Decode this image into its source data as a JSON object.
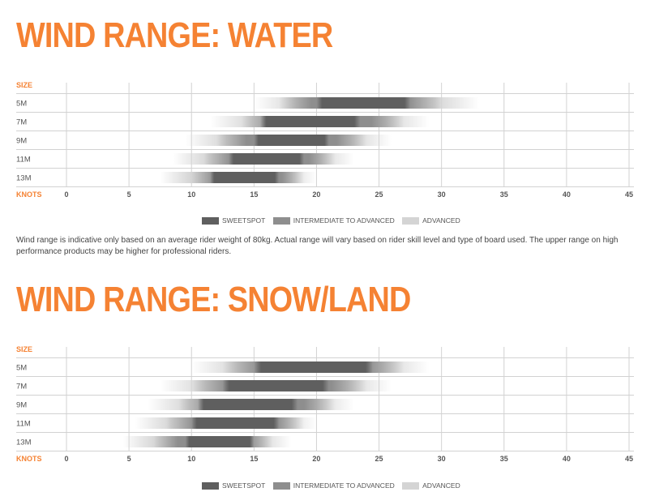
{
  "colors": {
    "accent": "#f58233",
    "sweetspot": "#5f5f5f",
    "intermediate": "#8e8e8e",
    "advanced": "#d4d4d4",
    "grid": "#d2d2d2",
    "label": "#555555"
  },
  "legend": {
    "sweetspot": "SWEETSPOT",
    "intermediate": "INTERMEDIATE TO ADVANCED",
    "advanced": "ADVANCED"
  },
  "note": "Wind range is indicative only based on an average rider weight of 80kg. Actual range will vary based on rider skill level and type of board used. The upper range on high performance products may be higher for professional riders.",
  "chart_data": [
    {
      "type": "bar",
      "title": "WIND RANGE: WATER",
      "ylabel": "SIZE",
      "xlabel": "KNOTS",
      "xlim": [
        0,
        45
      ],
      "xticks": [
        0,
        5,
        10,
        15,
        20,
        25,
        30,
        35,
        40,
        45
      ],
      "categories": [
        "5M",
        "7M",
        "9M",
        "11M",
        "13M"
      ],
      "series": [
        {
          "name": "ADVANCED",
          "ranges": [
            [
              15,
              33
            ],
            [
              11.5,
              29
            ],
            [
              9.5,
              26
            ],
            [
              8.5,
              23
            ],
            [
              7.5,
              20
            ]
          ]
        },
        {
          "name": "INTERMEDIATE TO ADVANCED",
          "ranges": [
            [
              17,
              30
            ],
            [
              14,
              27
            ],
            [
              12,
              24
            ],
            [
              11,
              21.5
            ],
            [
              10,
              19
            ]
          ]
        },
        {
          "name": "SWEETSPOT",
          "ranges": [
            [
              20,
              27.5
            ],
            [
              15.5,
              23.5
            ],
            [
              15,
              21
            ],
            [
              13,
              19
            ],
            [
              11.5,
              17
            ]
          ]
        }
      ]
    },
    {
      "type": "bar",
      "title": "WIND RANGE: SNOW/LAND",
      "ylabel": "SIZE",
      "xlabel": "KNOTS",
      "xlim": [
        0,
        45
      ],
      "xticks": [
        0,
        5,
        10,
        15,
        20,
        25,
        30,
        35,
        40,
        45
      ],
      "categories": [
        "5M",
        "7M",
        "9M",
        "11M",
        "13M"
      ],
      "series": [
        {
          "name": "ADVANCED",
          "ranges": [
            [
              10,
              29
            ],
            [
              7.5,
              26
            ],
            [
              6.5,
              23
            ],
            [
              5.5,
              20
            ],
            [
              4.5,
              18
            ]
          ]
        },
        {
          "name": "INTERMEDIATE TO ADVANCED",
          "ranges": [
            [
              12.5,
              27
            ],
            [
              10,
              24
            ],
            [
              9,
              21.5
            ],
            [
              8,
              19
            ],
            [
              7,
              16.5
            ]
          ]
        },
        {
          "name": "SWEETSPOT",
          "ranges": [
            [
              15,
              24.5
            ],
            [
              12.5,
              21
            ],
            [
              10.5,
              18.5
            ],
            [
              10,
              17
            ],
            [
              9.5,
              15
            ]
          ]
        }
      ]
    }
  ]
}
